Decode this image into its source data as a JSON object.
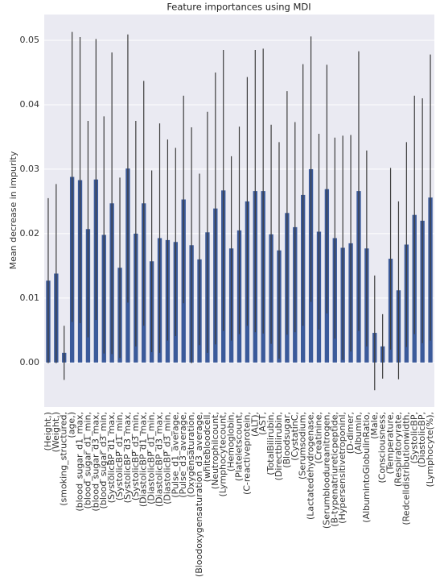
{
  "chart_data": {
    "type": "bar",
    "title": "Feature importances using MDI",
    "y_label": "Mean decrease in impurity",
    "categories": [
      "(Height,)",
      "(Weight,)",
      "(smoking_structured,",
      "(age,)",
      "(blood_sugar_d1_max,",
      "(blood_sugar_d1_min,",
      "(blood_sugar_d3_max,",
      "(blood_sugar_d3_min,",
      "(SystolicBP_d1_max,",
      "(SystolicBP_d1_min,",
      "(SystolicBP_d3_max,",
      "(SystolicBP_d3_min,",
      "(DiastolicBP_d1_max,",
      "(DiastolicBP_d1_min,",
      "(DiastolicBP_d3_max,",
      "(DiastolicBP_d3_min,",
      "(Pulse_d1_average,",
      "(Pulse_d3_average,",
      "(Oxygensaturation,",
      "(Bloodoxygensaturation_d3_average,",
      "(whitebloodcell,",
      "(Neutrophilcount,",
      "(Lymphocytecount,",
      "(Hemoglobin,",
      "(Plateletscount,",
      "(C-reactiveprotein,",
      "(ALT),",
      "(AST,",
      "(TotalBilirubin,",
      "(Directbilirubin,",
      "(Bloodsugar,",
      "(CystatinC,",
      "(Serumsodium,",
      "(Lactatedehydrogenase,",
      "(Creatinine,",
      "(Serumbloodureanitrogen,",
      "(B-typenatriureticpeptide,",
      "(Hypersensitivetroponinl,",
      "(D-dimer,",
      "(Albumin,",
      "(AlbumintoGlobulinRatio,",
      "(Male,",
      "(Consciousness,",
      "(Temperature,",
      "(Respiratoryrate,",
      "(Redcelldistributionwidth,",
      "(SystolicBP,",
      "(DiastolicBP,",
      "(Lymphocyte(%),"
    ],
    "values": [
      0.0127,
      0.0138,
      0.0015,
      0.0288,
      0.0283,
      0.0207,
      0.0284,
      0.0198,
      0.0247,
      0.0147,
      0.0301,
      0.02,
      0.0247,
      0.0157,
      0.0193,
      0.019,
      0.0187,
      0.0253,
      0.0182,
      0.016,
      0.0202,
      0.0239,
      0.0267,
      0.0177,
      0.0205,
      0.025,
      0.0266,
      0.0266,
      0.0199,
      0.0174,
      0.0232,
      0.021,
      0.026,
      0.03,
      0.0203,
      0.0269,
      0.0193,
      0.0178,
      0.0185,
      0.0266,
      0.0177,
      0.0046,
      0.0025,
      0.0161,
      0.0112,
      0.0183,
      0.0229,
      0.022,
      0.0256
    ],
    "errors": [
      0.0128,
      0.0139,
      0.0042,
      0.0225,
      0.0222,
      0.0168,
      0.0218,
      0.0184,
      0.0234,
      0.014,
      0.0208,
      0.0175,
      0.019,
      0.0141,
      0.0178,
      0.0156,
      0.0146,
      0.0161,
      0.0183,
      0.0133,
      0.0187,
      0.0211,
      0.0218,
      0.0143,
      0.0161,
      0.0193,
      0.0219,
      0.0221,
      0.017,
      0.0168,
      0.0189,
      0.0163,
      0.0203,
      0.0206,
      0.0152,
      0.0193,
      0.0156,
      0.0174,
      0.0168,
      0.0217,
      0.0152,
      0.0089,
      0.005,
      0.0141,
      0.0138,
      0.0159,
      0.0185,
      0.019,
      0.0222
    ],
    "color": "#3b5a9a",
    "error_color": "#3d3d3d",
    "ylim": [
      -0.0069,
      0.054
    ],
    "yticks": [
      {
        "value": 0,
        "label": "0.00"
      },
      {
        "value": 0.01,
        "label": "0.01"
      },
      {
        "value": 0.02,
        "label": "0.02"
      },
      {
        "value": 0.03,
        "label": "0.03"
      },
      {
        "value": 0.04,
        "label": "0.04"
      },
      {
        "value": 0.05,
        "label": "0.05"
      }
    ],
    "grid": true
  }
}
